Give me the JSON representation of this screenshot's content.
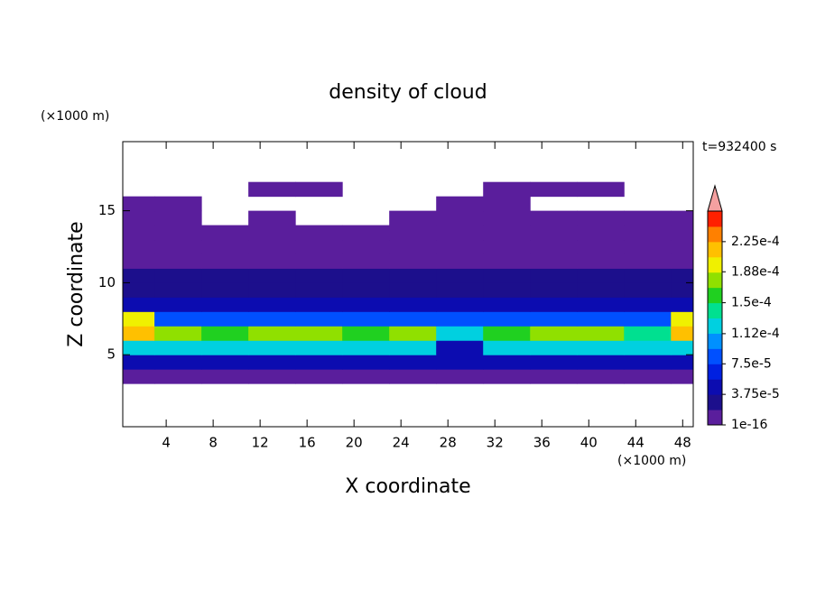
{
  "chart_data": {
    "type": "contour",
    "title": "density of cloud",
    "x_label": "X coordinate",
    "y_label": "Z coordinate",
    "x_unit": "(×1000 m)",
    "y_unit": "(×1000 m)",
    "time_label": "t=932400 s",
    "xlim": [
      0.3,
      48.9
    ],
    "ylim": [
      0,
      19.8
    ],
    "xticks": [
      4,
      8,
      12,
      16,
      20,
      24,
      28,
      32,
      36,
      40,
      44,
      48
    ],
    "yticks": [
      5,
      10,
      15
    ],
    "x": [
      1,
      5,
      9,
      13,
      17,
      21,
      25,
      29,
      33,
      37,
      41,
      45,
      49
    ],
    "z": [
      3.5,
      4.5,
      5.5,
      6.5,
      7.5,
      8.5,
      9.5,
      10.5,
      11.5,
      12.5,
      13.5,
      14.5,
      15.5,
      16.5
    ],
    "values": [
      [
        1e-05,
        1e-05,
        1e-05,
        1e-05,
        1e-05,
        1e-05,
        1e-05,
        1e-05,
        1e-05,
        1e-05,
        1e-05,
        1e-05,
        1e-05
      ],
      [
        5e-05,
        5e-05,
        5e-05,
        5e-05,
        5e-05,
        5e-05,
        5e-05,
        5e-05,
        5e-05,
        5e-05,
        5e-05,
        5e-05,
        5e-05
      ],
      [
        0.00013,
        0.00013,
        0.00013,
        0.00013,
        0.00013,
        0.00013,
        0.00013,
        5e-05,
        0.00013,
        0.00013,
        0.00013,
        0.00013,
        0.00013
      ],
      [
        0.00021,
        0.00017,
        0.00016,
        0.00017,
        0.00018,
        0.00016,
        0.00017,
        0.00012,
        0.00016,
        0.00017,
        0.00017,
        0.00015,
        0.00021
      ],
      [
        0.00019,
        9e-05,
        9e-05,
        9e-05,
        9e-05,
        9e-05,
        9e-05,
        9e-05,
        9e-05,
        9e-05,
        9e-05,
        9e-05,
        0.00019
      ],
      [
        4e-05,
        4e-05,
        4e-05,
        4e-05,
        4e-05,
        4e-05,
        4e-05,
        4e-05,
        4e-05,
        4e-05,
        4e-05,
        4e-05,
        4e-05
      ],
      [
        3e-05,
        3e-05,
        3e-05,
        3e-05,
        3e-05,
        3e-05,
        3e-05,
        3e-05,
        3e-05,
        3e-05,
        3e-05,
        3e-05,
        3e-05
      ],
      [
        2e-05,
        2e-05,
        2e-05,
        2e-05,
        2e-05,
        2e-05,
        2e-05,
        2e-05,
        2e-05,
        2e-05,
        2e-05,
        2e-05,
        2e-05
      ],
      [
        1e-05,
        1e-05,
        1e-05,
        1e-05,
        1e-05,
        1e-05,
        1e-05,
        1e-05,
        1e-05,
        1e-05,
        1e-05,
        1e-05,
        1e-05
      ],
      [
        5e-06,
        5e-06,
        5e-06,
        5e-06,
        5e-06,
        5e-06,
        5e-06,
        5e-06,
        5e-06,
        5e-06,
        5e-06,
        5e-06,
        5e-06
      ],
      [
        5e-06,
        5e-06,
        5e-06,
        5e-06,
        5e-06,
        5e-06,
        5e-06,
        5e-06,
        5e-06,
        5e-06,
        5e-06,
        5e-06,
        5e-06
      ],
      [
        5e-06,
        5e-06,
        null,
        5e-06,
        null,
        null,
        5e-06,
        5e-06,
        5e-06,
        5e-06,
        5e-06,
        5e-06,
        5e-06
      ],
      [
        5e-06,
        5e-06,
        null,
        null,
        null,
        null,
        null,
        5e-06,
        5e-06,
        null,
        null,
        null,
        null
      ],
      [
        null,
        null,
        null,
        5e-06,
        5e-06,
        null,
        null,
        null,
        5e-06,
        5e-06,
        5e-06,
        null,
        null
      ]
    ],
    "clim": [
      1e-16,
      0.0002625
    ],
    "colors": [
      "#5a1e9c",
      "#1c0f8c",
      "#0c0cb0",
      "#0020e0",
      "#0050ff",
      "#0090ff",
      "#00d0e0",
      "#00e090",
      "#20d020",
      "#90e000",
      "#f0f000",
      "#ffc000",
      "#ff8000",
      "#ff2000"
    ],
    "extend_color": "#f4a0a0",
    "cticks": [
      1e-16,
      {
        "value": 3.75e-05,
        "label": "3.75e-5"
      },
      {
        "value": 7.5e-05,
        "label": "7.5e-5"
      },
      {
        "value": 0.000112,
        "label": "1.12e-4"
      },
      {
        "value": 0.00015,
        "label": "1.5e-4"
      },
      {
        "value": 0.000188,
        "label": "1.88e-4"
      },
      {
        "value": 0.000225,
        "label": "2.25e-4"
      }
    ]
  }
}
